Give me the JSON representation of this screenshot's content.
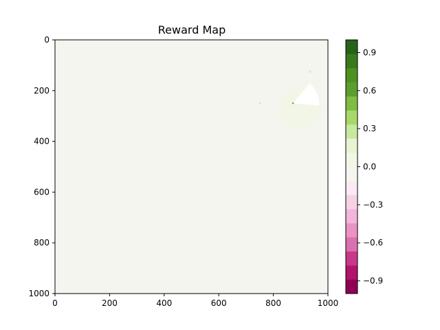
{
  "chart_data": {
    "type": "heatmap",
    "title": "Reward Map",
    "xlabel": "",
    "ylabel": "",
    "xlim": [
      0,
      1000
    ],
    "ylim": [
      1000,
      0
    ],
    "x_ticks": [
      0,
      200,
      400,
      600,
      800,
      1000
    ],
    "y_ticks": [
      0,
      200,
      400,
      600,
      800,
      1000
    ],
    "x_tick_labels": [
      "0",
      "200",
      "400",
      "600",
      "800",
      "1000"
    ],
    "y_tick_labels": [
      "0",
      "200",
      "400",
      "600",
      "800",
      "1000"
    ],
    "background_value": -0.05,
    "features": [
      {
        "kind": "disc",
        "cx": 897,
        "cy": 270,
        "r": 75,
        "value": 0.02
      },
      {
        "kind": "wedge",
        "cx": 872,
        "cy": 250,
        "r": 95,
        "angle_start": -50,
        "angle_end": 5,
        "value": 0.0
      },
      {
        "kind": "point",
        "cx": 872,
        "cy": 250,
        "value": 0.7
      },
      {
        "kind": "speck",
        "cx": 750,
        "cy": 250,
        "value": -0.1
      },
      {
        "kind": "speck",
        "cx": 935,
        "cy": 125,
        "value": -0.1
      }
    ],
    "colorbar": {
      "colormap": "PiYG",
      "range": [
        -1.0,
        1.0
      ],
      "ticks": [
        -0.9,
        -0.6,
        -0.3,
        0.0,
        0.3,
        0.6,
        0.9
      ],
      "tick_labels": [
        "−0.9",
        "−0.6",
        "−0.3",
        "0.0",
        "0.3",
        "0.6",
        "0.9"
      ],
      "levels": [
        "#8e0152",
        "#b1136e",
        "#c7388a",
        "#dc70ae",
        "#e994c3",
        "#f1b6da",
        "#f7d2e7",
        "#faeaf3",
        "#f4f5ef",
        "#f1f6e6",
        "#e6f5d0",
        "#c8e89f",
        "#a6d96a",
        "#7fbc41",
        "#5c9e2e",
        "#4d9221",
        "#3a7a1c",
        "#276419"
      ]
    }
  }
}
